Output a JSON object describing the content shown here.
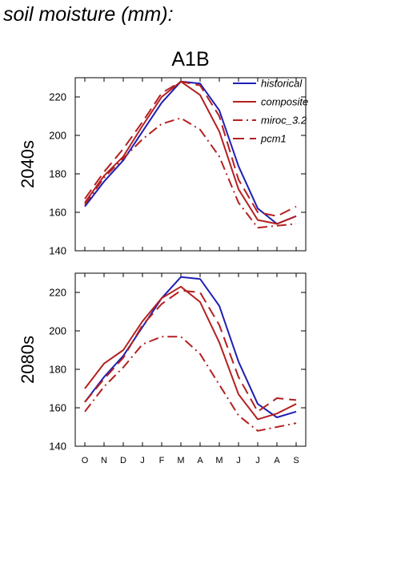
{
  "title": "soil moisture (mm):",
  "chart_data": {
    "type": "line",
    "title": "A1B",
    "categories": [
      "O",
      "N",
      "D",
      "J",
      "F",
      "M",
      "A",
      "M",
      "J",
      "J",
      "A",
      "S"
    ],
    "ylim": [
      140,
      230
    ],
    "yticks": [
      140,
      160,
      180,
      200,
      220
    ],
    "grid": false,
    "legend_position": "top-right",
    "legend": [
      "historical",
      "composite",
      "miroc_3.2",
      "pcm1"
    ],
    "colors": {
      "historical": "#1f1fb4",
      "projection": "#b42020"
    },
    "panels": [
      {
        "ylabel": "2040s",
        "series": [
          {
            "name": "historical",
            "style": "solid",
            "values": [
              163,
              176,
              187,
              202,
              217,
              228,
              227,
              213,
              184,
              162,
              154,
              158
            ]
          },
          {
            "name": "composite",
            "style": "solid",
            "values": [
              165,
              179,
              189,
              205,
              220,
              228,
              221,
              202,
              172,
              156,
              154,
              158
            ]
          },
          {
            "name": "miroc_3.2",
            "style": "dashdot",
            "values": [
              164,
              178,
              188,
              198,
              206,
              209,
              203,
              189,
              165,
              152,
              153,
              154
            ]
          },
          {
            "name": "pcm1",
            "style": "dashed",
            "values": [
              167,
              181,
              193,
              207,
              222,
              228,
              226,
              210,
              177,
              160,
              158,
              163
            ]
          }
        ]
      },
      {
        "ylabel": "2080s",
        "series": [
          {
            "name": "historical",
            "style": "solid",
            "values": [
              163,
              176,
              187,
              202,
              217,
              228,
              227,
              213,
              184,
              162,
              155,
              158
            ]
          },
          {
            "name": "composite",
            "style": "solid",
            "values": [
              170,
              183,
              190,
              205,
              217,
              223,
              215,
              194,
              167,
              154,
              157,
              162
            ]
          },
          {
            "name": "miroc_3.2",
            "style": "dashdot",
            "values": [
              158,
              171,
              181,
              193,
              197,
              197,
              188,
              172,
              156,
              148,
              150,
              152
            ]
          },
          {
            "name": "pcm1",
            "style": "dashed",
            "values": [
              163,
              175,
              186,
              203,
              214,
              221,
              220,
              203,
              176,
              158,
              165,
              164
            ]
          }
        ]
      }
    ]
  }
}
